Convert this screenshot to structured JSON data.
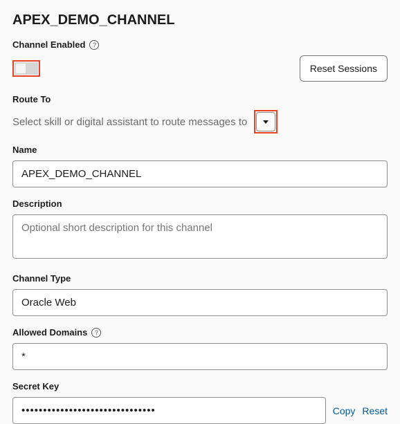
{
  "header": {
    "title": "APEX_DEMO_CHANNEL"
  },
  "channel_enabled": {
    "label": "Channel Enabled",
    "state": "off"
  },
  "reset_sessions": {
    "label": "Reset Sessions"
  },
  "route_to": {
    "label": "Route To",
    "help_text": "Select skill or digital assistant to route messages to"
  },
  "name": {
    "label": "Name",
    "value": "APEX_DEMO_CHANNEL"
  },
  "description": {
    "label": "Description",
    "placeholder": "Optional short description for this channel",
    "value": ""
  },
  "channel_type": {
    "label": "Channel Type",
    "value": "Oracle Web"
  },
  "allowed_domains": {
    "label": "Allowed Domains",
    "value": "*"
  },
  "secret_key": {
    "label": "Secret Key",
    "masked_value": "•••••••••••••••••••••••••••••••",
    "copy_label": "Copy",
    "reset_label": "Reset"
  },
  "colors": {
    "highlight": "#e8402a",
    "link": "#005c9e",
    "background": "#fafafa",
    "placeholder": "#6b6b6b",
    "border": "#8e8e8e"
  }
}
